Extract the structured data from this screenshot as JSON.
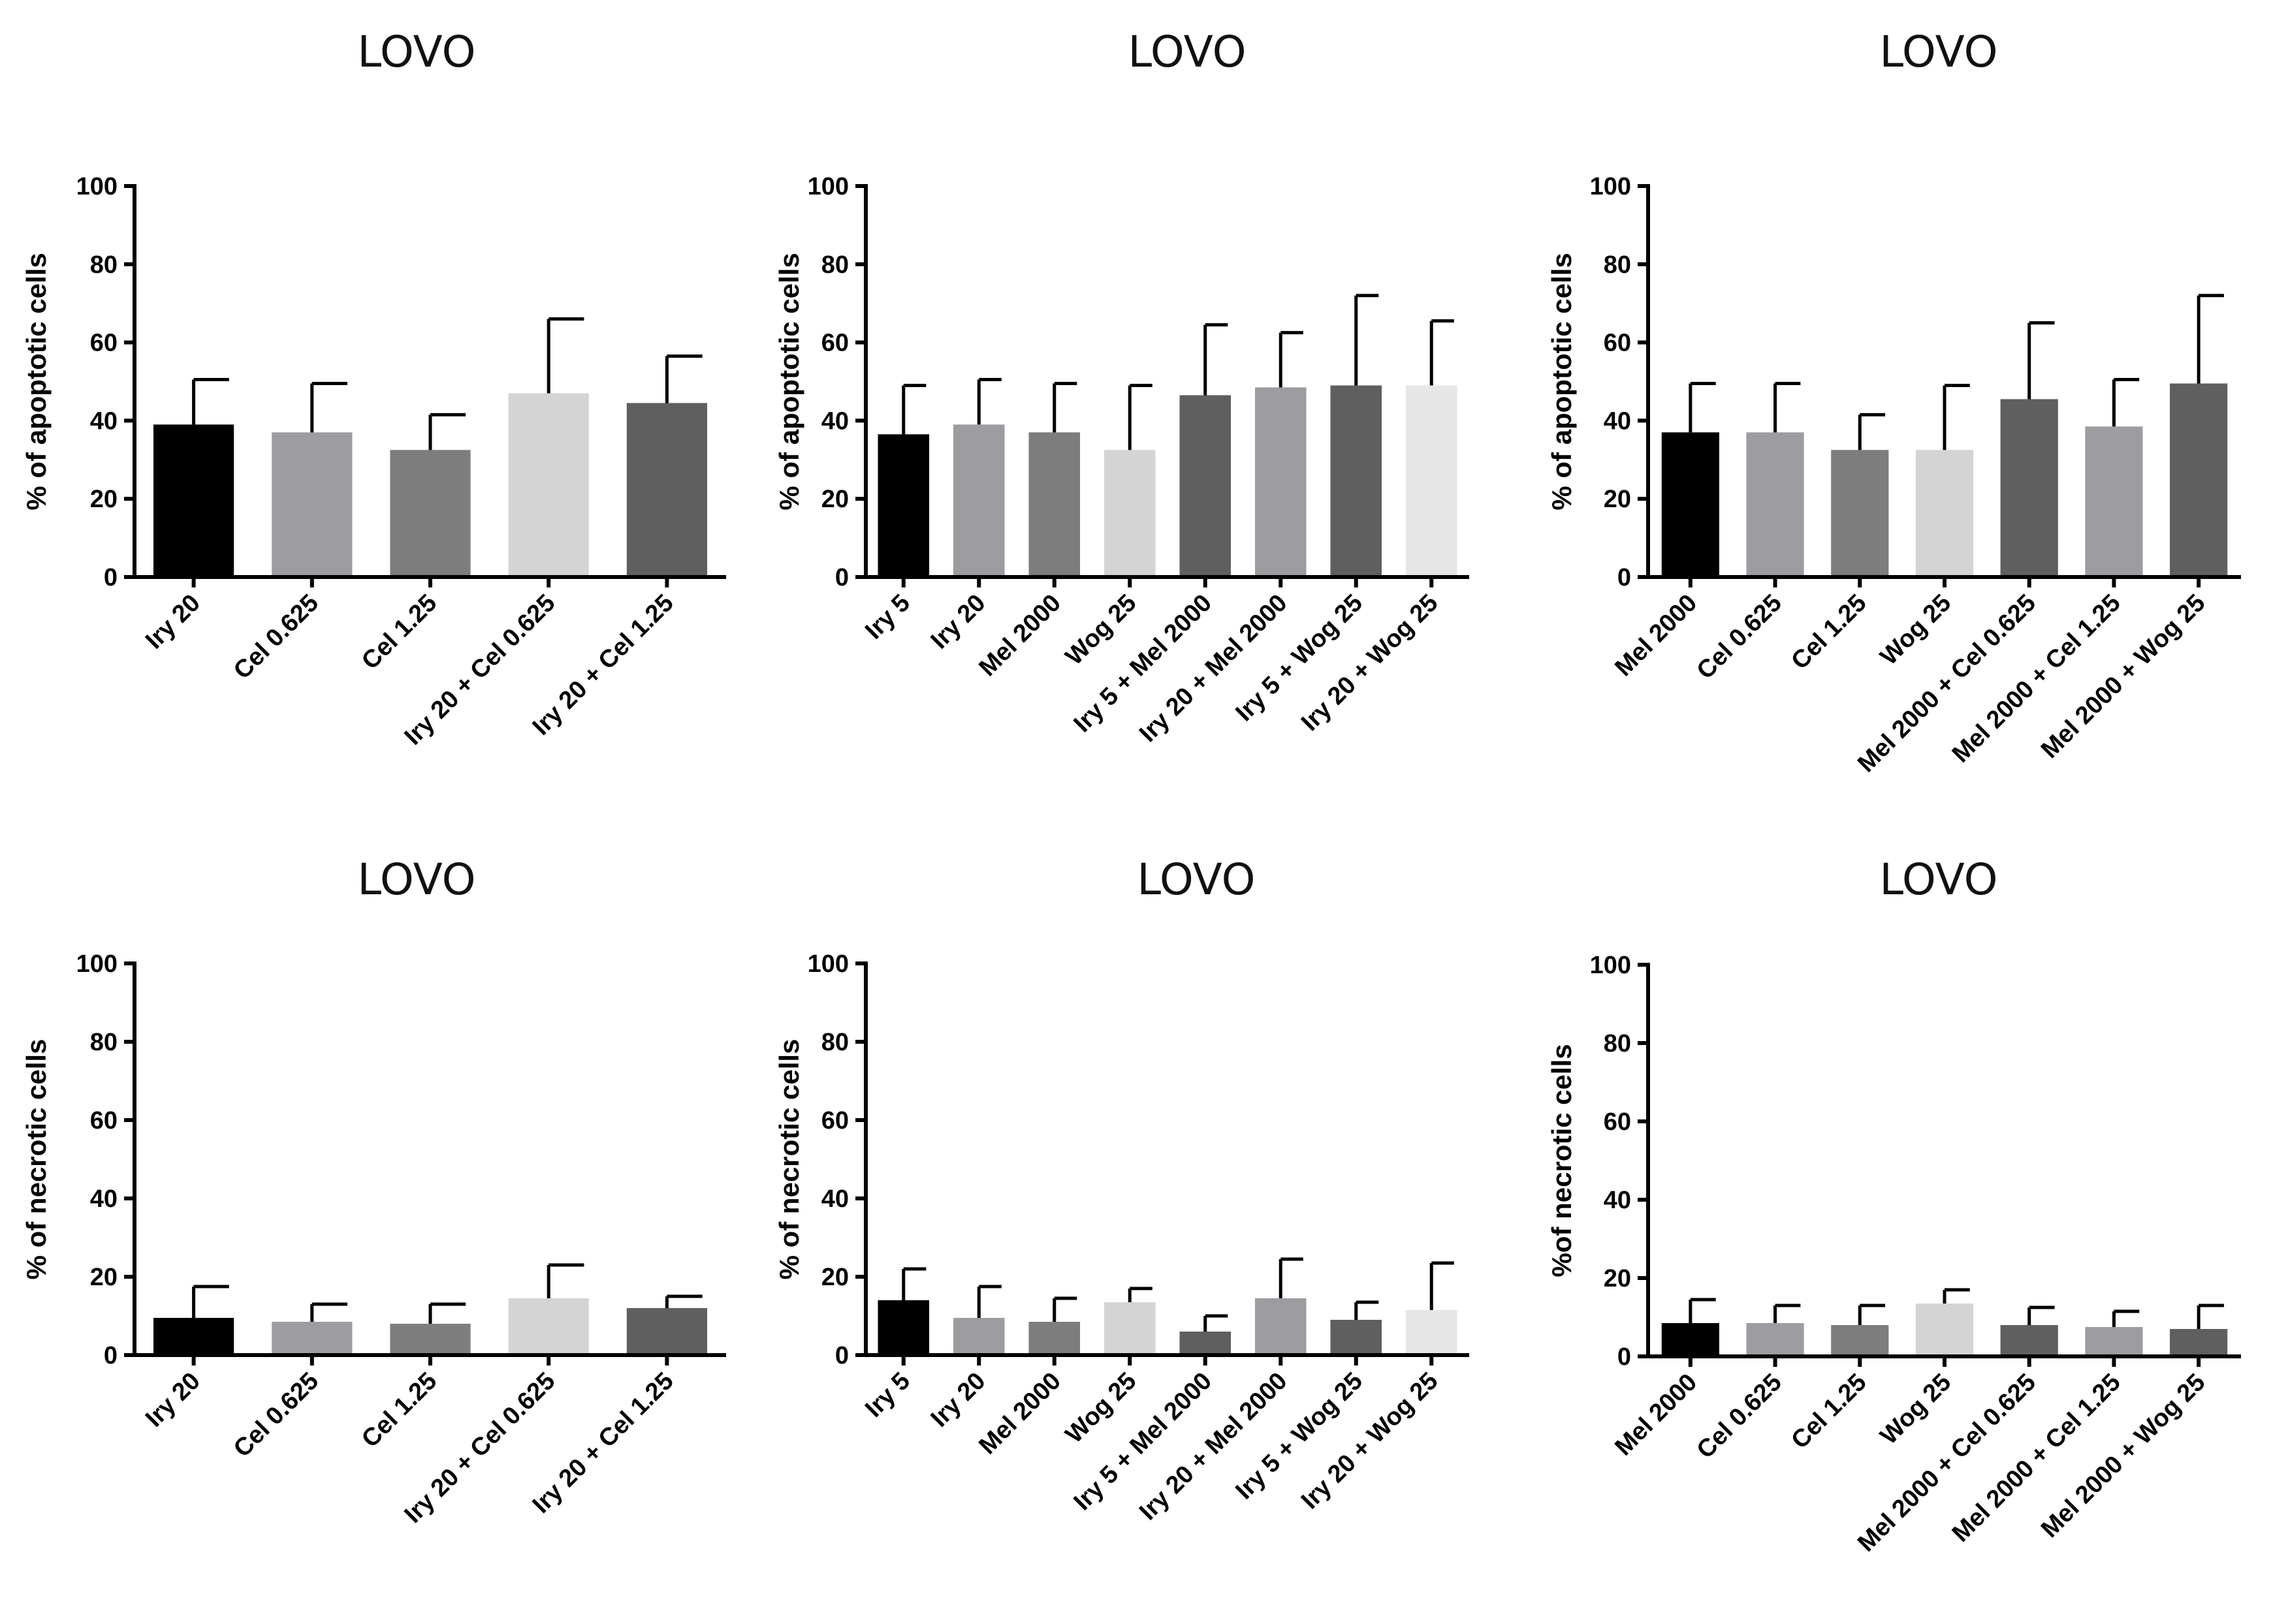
{
  "chart_data": [
    {
      "type": "bar",
      "title": "LOVO",
      "ylabel": "% of apoptotic cells",
      "xlabel": "",
      "ylim": [
        0,
        100
      ],
      "yticks": [
        0,
        20,
        40,
        60,
        80,
        100
      ],
      "ytick_labels": [
        "0",
        "20",
        "40",
        "60",
        "80",
        "100"
      ],
      "categories": [
        "Iry 20",
        "Cel 0.625",
        "Cel 1.25",
        "Iry 20 + Cel 0.625",
        "Iry 20 + Cel 1.25"
      ],
      "values": [
        39,
        37,
        32.5,
        47,
        44.5
      ],
      "errors": [
        11.5,
        12.5,
        9,
        19,
        12
      ],
      "colors": [
        "#000000",
        "#9d9da1",
        "#7d7d7d",
        "#d4d4d4",
        "#5f5f5f"
      ]
    },
    {
      "type": "bar",
      "title": "LOVO",
      "ylabel": "% of apoptotic cells",
      "xlabel": "",
      "ylim": [
        0,
        100
      ],
      "yticks": [
        0,
        20,
        40,
        60,
        80,
        100
      ],
      "ytick_labels": [
        "0",
        "20",
        "40",
        "60",
        "80",
        "100"
      ],
      "categories": [
        "Iry 5",
        "Iry 20",
        "Mel 2000",
        "Wog 25",
        "Iry 5 + Mel 2000",
        "Iry 20 + Mel 2000",
        "Iry 5 + Wog 25",
        "Iry 20 + Wog 25"
      ],
      "values": [
        36.5,
        39,
        37,
        32.5,
        46.5,
        48.5,
        49,
        49
      ],
      "errors": [
        12.5,
        11.5,
        12.5,
        16.5,
        18,
        14,
        23,
        16.5
      ],
      "colors": [
        "#000000",
        "#9d9da1",
        "#7d7d7d",
        "#d4d4d4",
        "#5f5f5f",
        "#9d9da1",
        "#5f5f5f",
        "#e6e6e6"
      ]
    },
    {
      "type": "bar",
      "title": "LOVO",
      "ylabel": "% of apoptotic cells",
      "xlabel": "",
      "ylim": [
        0,
        100
      ],
      "yticks": [
        0,
        20,
        40,
        60,
        80,
        100
      ],
      "ytick_labels": [
        "0",
        "20",
        "40",
        "60",
        "80",
        "100"
      ],
      "categories": [
        "Mel 2000",
        "Cel 0.625",
        "Cel 1.25",
        "Wog 25",
        "Mel 2000 + Cel 0.625",
        "Mel 2000 + Cel 1.25",
        "Mel 2000 + Wog 25"
      ],
      "values": [
        37,
        37,
        32.5,
        32.5,
        45.5,
        38.5,
        49.5
      ],
      "errors": [
        12.5,
        12.5,
        9,
        16.5,
        19.5,
        12,
        22.5
      ],
      "colors": [
        "#000000",
        "#9d9da1",
        "#7d7d7d",
        "#d4d4d4",
        "#5f5f5f",
        "#9d9da1",
        "#5f5f5f"
      ]
    },
    {
      "type": "bar",
      "title": "LOVO",
      "ylabel": "% of necrotic cells",
      "xlabel": "",
      "ylim": [
        0,
        100
      ],
      "yticks": [
        0,
        20,
        40,
        60,
        80,
        100
      ],
      "ytick_labels": [
        "0",
        "20",
        "40",
        "60",
        "80",
        "100"
      ],
      "categories": [
        "Iry 20",
        "Cel 0.625",
        "Cel 1.25",
        "Iry 20 + Cel 0.625",
        "Iry 20 + Cel 1.25"
      ],
      "values": [
        9.5,
        8.5,
        8,
        14.5,
        12
      ],
      "errors": [
        8,
        4.5,
        5,
        8.5,
        3
      ],
      "colors": [
        "#000000",
        "#9d9da1",
        "#7d7d7d",
        "#d4d4d4",
        "#5f5f5f"
      ]
    },
    {
      "type": "bar",
      "title": "LOVO",
      "ylabel": "% of necrotic cells",
      "xlabel": "",
      "ylim": [
        0,
        100
      ],
      "yticks": [
        0,
        20,
        40,
        60,
        80,
        100
      ],
      "ytick_labels": [
        "0",
        "20",
        "40",
        "60",
        "80",
        "100"
      ],
      "categories": [
        "Iry 5",
        "Iry 20",
        "Mel 2000",
        "Wog 25",
        "Iry 5 + Mel 2000",
        "Iry 20 + Mel 2000",
        "Iry 5 + Wog 25",
        "Iry 20 + Wog 25"
      ],
      "values": [
        14,
        9.5,
        8.5,
        13.5,
        6,
        14.5,
        9,
        11.5
      ],
      "errors": [
        8,
        8,
        6,
        3.5,
        4,
        10,
        4.5,
        12
      ],
      "colors": [
        "#000000",
        "#9d9da1",
        "#7d7d7d",
        "#d4d4d4",
        "#5f5f5f",
        "#9d9da1",
        "#5f5f5f",
        "#e6e6e6"
      ]
    },
    {
      "type": "bar",
      "title": "LOVO",
      "ylabel": "%of necrotic cells",
      "xlabel": "",
      "ylim": [
        0,
        100
      ],
      "yticks": [
        0,
        20,
        40,
        60,
        80,
        100
      ],
      "ytick_labels": [
        "0",
        "20",
        "40",
        "60",
        "80",
        "100"
      ],
      "categories": [
        "Mel 2000",
        "Cel 0.625",
        "Cel 1.25",
        "Wog 25",
        "Mel 2000 + Cel 0.625",
        "Mel 2000 + Cel 1.25",
        "Mel 2000 + Wog 25"
      ],
      "values": [
        8.5,
        8.5,
        8,
        13.5,
        8,
        7.5,
        7
      ],
      "errors": [
        6,
        4.5,
        5,
        3.5,
        4.5,
        4,
        6
      ],
      "colors": [
        "#000000",
        "#9d9da1",
        "#7d7d7d",
        "#d4d4d4",
        "#5f5f5f",
        "#9d9da1",
        "#5f5f5f"
      ]
    }
  ]
}
